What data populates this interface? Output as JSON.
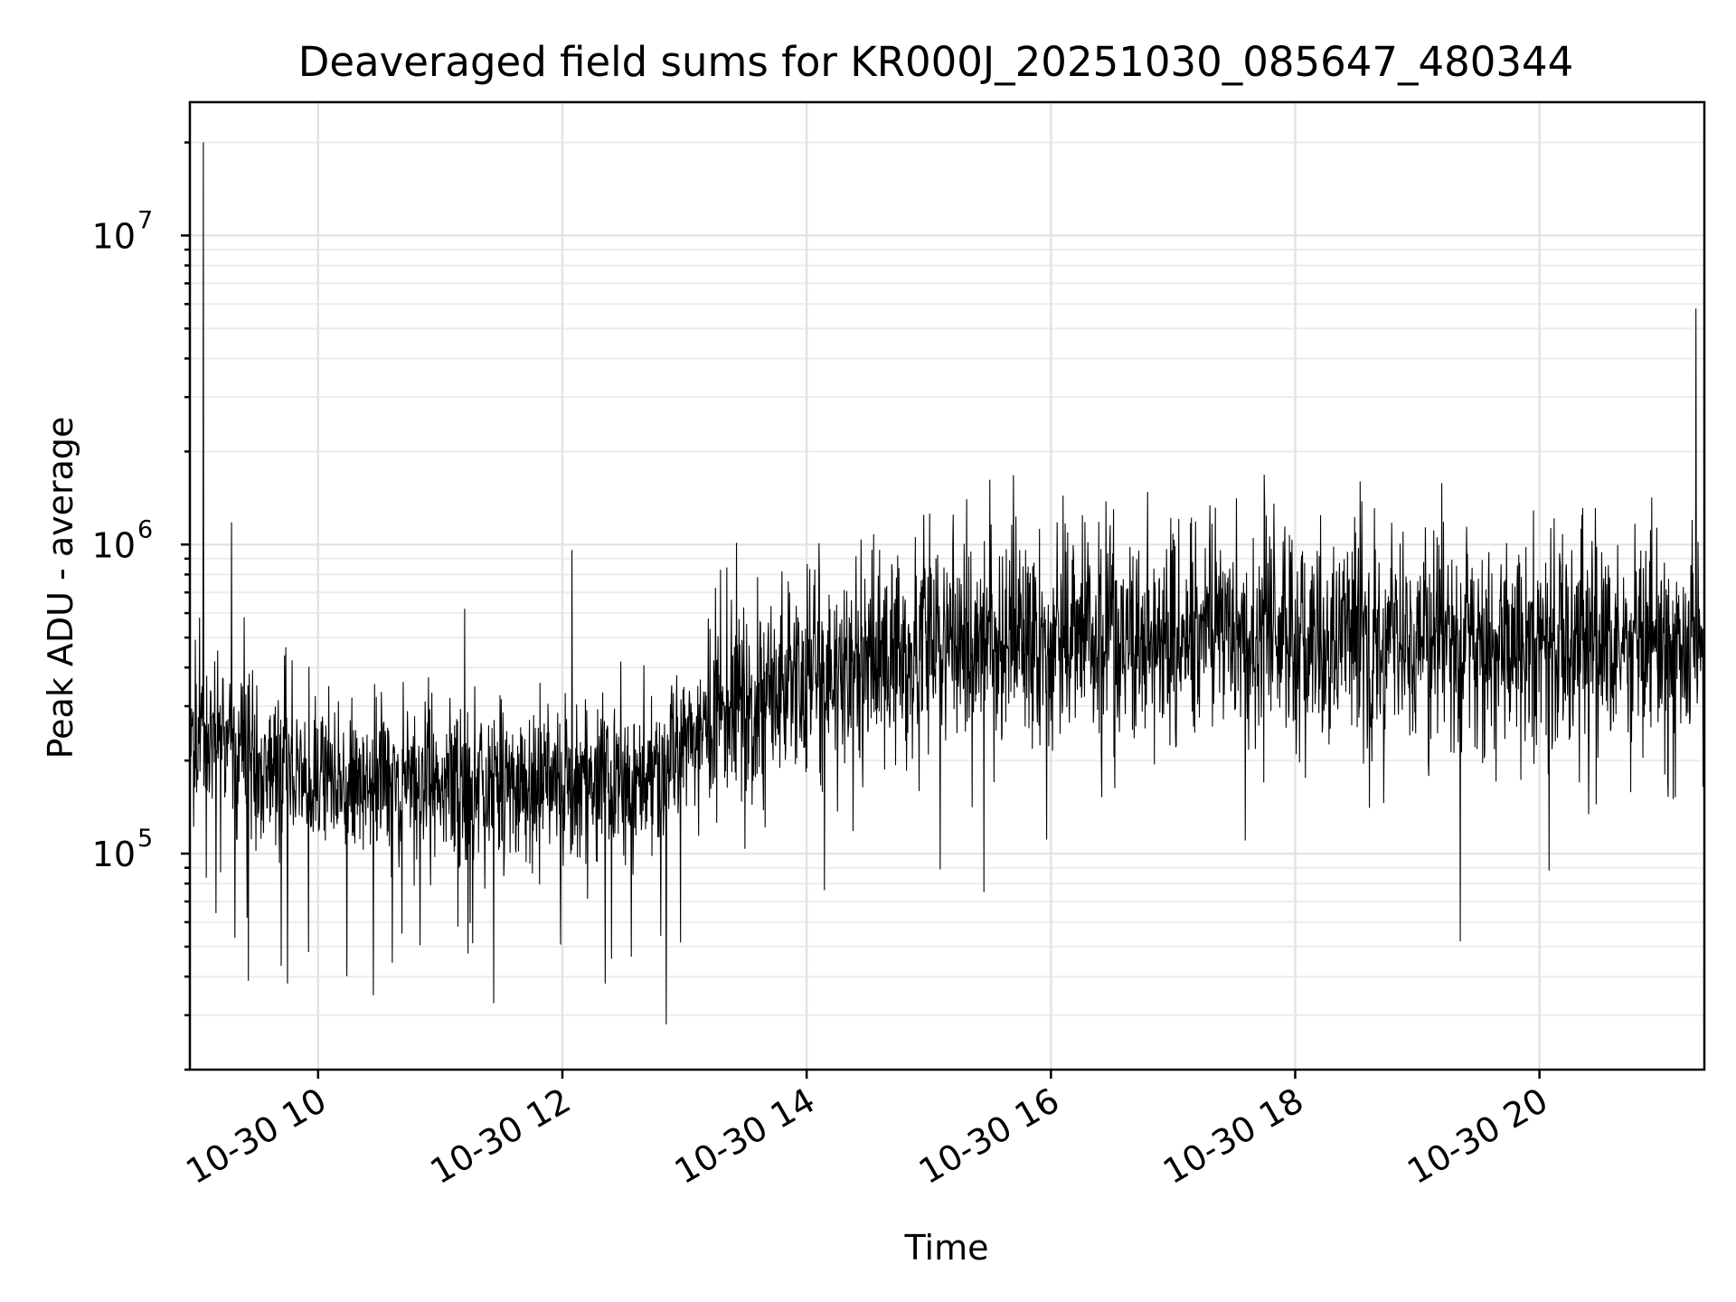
{
  "chart_data": {
    "type": "line",
    "title": "Deaveraged field sums for KR000J_20251030_085647_480344",
    "xlabel": "Time",
    "ylabel": "Peak ADU - average",
    "yscale": "log",
    "ylim": [
      20000,
      27000000
    ],
    "xlim_hours": [
      8.95,
      21.35
    ],
    "grid": true,
    "x_ticks": [
      {
        "hour": 10,
        "label": "10-30 10"
      },
      {
        "hour": 12,
        "label": "10-30 12"
      },
      {
        "hour": 14,
        "label": "10-30 14"
      },
      {
        "hour": 16,
        "label": "10-30 16"
      },
      {
        "hour": 18,
        "label": "10-30 18"
      },
      {
        "hour": 20,
        "label": "10-30 20"
      }
    ],
    "y_ticks": [
      {
        "value": 100000,
        "base": "10",
        "exp": "5"
      },
      {
        "value": 1000000,
        "base": "10",
        "exp": "6"
      },
      {
        "value": 10000000,
        "base": "10",
        "exp": "7"
      }
    ],
    "baseline": [
      {
        "hour": 8.95,
        "value": 260000
      },
      {
        "hour": 9.2,
        "value": 240000
      },
      {
        "hour": 9.5,
        "value": 200000
      },
      {
        "hour": 10.0,
        "value": 175000
      },
      {
        "hour": 11.0,
        "value": 165000
      },
      {
        "hour": 12.0,
        "value": 165000
      },
      {
        "hour": 12.8,
        "value": 180000
      },
      {
        "hour": 13.2,
        "value": 290000
      },
      {
        "hour": 14.0,
        "value": 350000
      },
      {
        "hour": 15.0,
        "value": 470000
      },
      {
        "hour": 16.0,
        "value": 510000
      },
      {
        "hour": 17.0,
        "value": 520000
      },
      {
        "hour": 18.0,
        "value": 520000
      },
      {
        "hour": 19.0,
        "value": 480000
      },
      {
        "hour": 20.0,
        "value": 480000
      },
      {
        "hour": 21.0,
        "value": 480000
      },
      {
        "hour": 21.35,
        "value": 450000
      }
    ],
    "spikes": [
      {
        "hour": 9.06,
        "value": 20000000
      },
      {
        "hour": 9.03,
        "value": 580000
      },
      {
        "hour": 9.2,
        "value": 87000
      },
      {
        "hour": 9.29,
        "value": 1180000
      },
      {
        "hour": 9.42,
        "value": 62000
      },
      {
        "hour": 9.75,
        "value": 38000
      },
      {
        "hour": 9.92,
        "value": 48000
      },
      {
        "hour": 11.2,
        "value": 620000
      },
      {
        "hour": 12.08,
        "value": 960000
      },
      {
        "hour": 12.35,
        "value": 38000
      },
      {
        "hour": 12.85,
        "value": 28000
      },
      {
        "hour": 13.85,
        "value": 760000
      },
      {
        "hour": 14.1,
        "value": 1010000
      },
      {
        "hour": 14.55,
        "value": 1080000
      },
      {
        "hour": 15.2,
        "value": 1250000
      },
      {
        "hour": 15.45,
        "value": 75000
      },
      {
        "hour": 15.5,
        "value": 1620000
      },
      {
        "hour": 16.1,
        "value": 1440000
      },
      {
        "hour": 16.45,
        "value": 1380000
      },
      {
        "hour": 17.3,
        "value": 1340000
      },
      {
        "hour": 17.75,
        "value": 1370000
      },
      {
        "hour": 18.65,
        "value": 1310000
      },
      {
        "hour": 19.2,
        "value": 1580000
      },
      {
        "hour": 19.35,
        "value": 52000
      },
      {
        "hour": 19.95,
        "value": 1290000
      },
      {
        "hour": 20.92,
        "value": 1420000
      },
      {
        "hour": 21.28,
        "value": 5800000
      },
      {
        "hour": 21.3,
        "value": 1020000
      },
      {
        "hour": 21.05,
        "value": 170000
      }
    ]
  }
}
